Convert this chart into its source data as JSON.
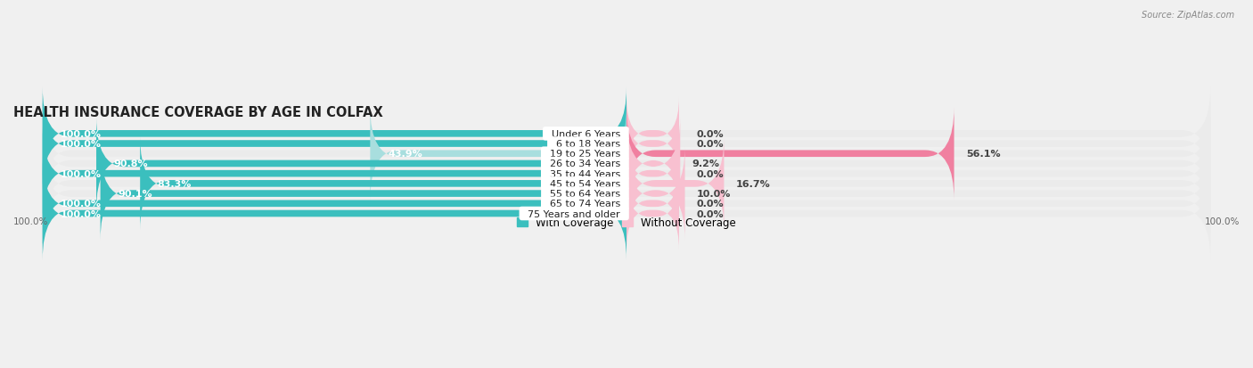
{
  "title": "HEALTH INSURANCE COVERAGE BY AGE IN COLFAX",
  "source": "Source: ZipAtlas.com",
  "categories": [
    "Under 6 Years",
    "6 to 18 Years",
    "19 to 25 Years",
    "26 to 34 Years",
    "35 to 44 Years",
    "45 to 54 Years",
    "55 to 64 Years",
    "65 to 74 Years",
    "75 Years and older"
  ],
  "with_coverage": [
    100.0,
    100.0,
    43.9,
    90.8,
    100.0,
    83.3,
    90.1,
    100.0,
    100.0
  ],
  "without_coverage": [
    0.0,
    0.0,
    56.1,
    9.2,
    0.0,
    16.7,
    10.0,
    0.0,
    0.0
  ],
  "color_with": "#3bbfbe",
  "color_with_light": "#a8dede",
  "color_without": "#f080a0",
  "color_without_light": "#f8c0d0",
  "color_bg_row": "#ebebeb",
  "title_fontsize": 10.5,
  "label_fontsize": 8,
  "cat_fontsize": 8,
  "bar_height": 0.68,
  "total_width": 100,
  "legend_with": "With Coverage",
  "legend_without": "Without Coverage"
}
